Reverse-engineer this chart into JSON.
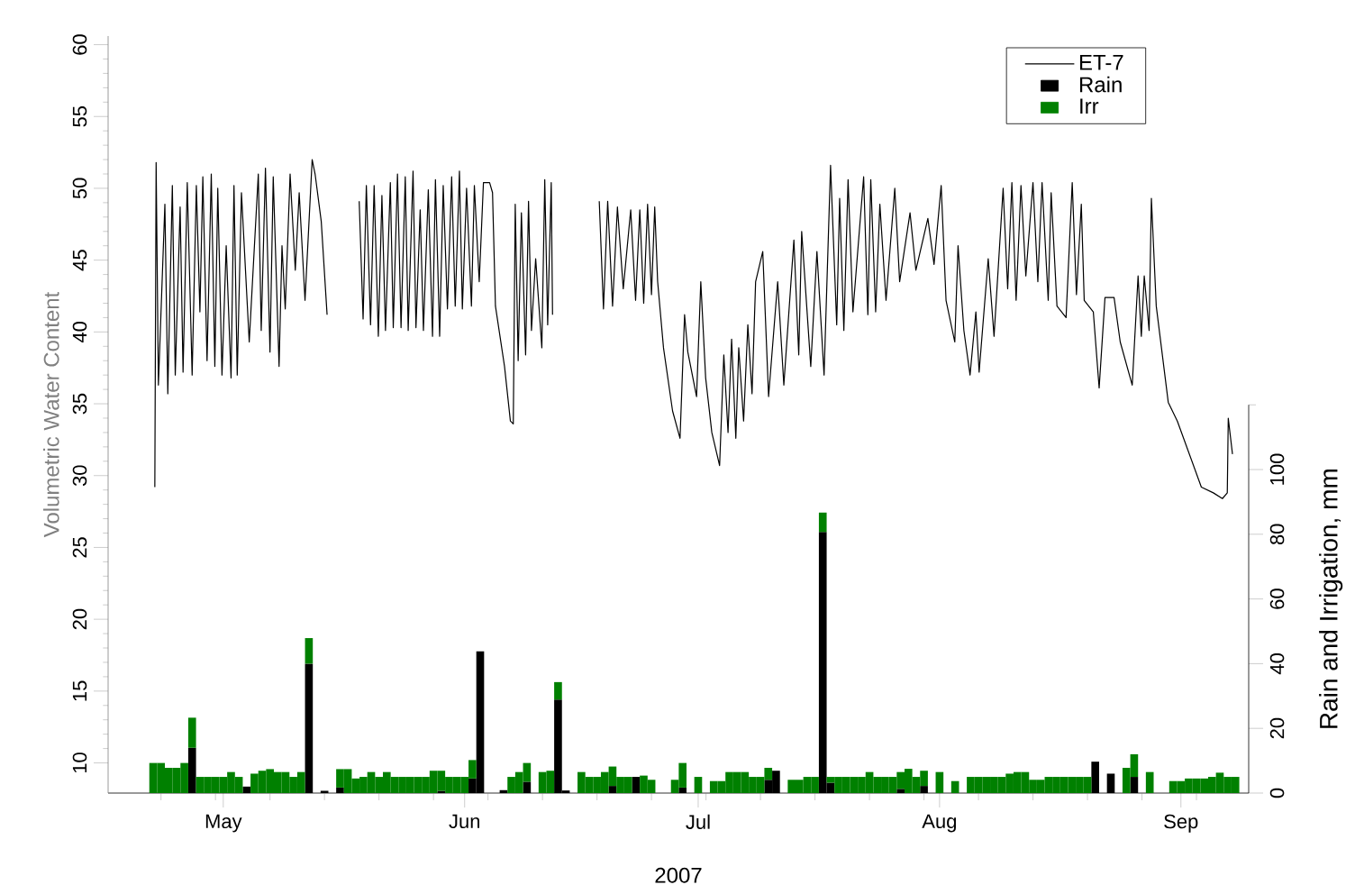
{
  "chart_data": {
    "type": "bar",
    "stacked": true,
    "xlabel": "2007",
    "ylabel": "Volumetric Water Content",
    "y2label": "Rain and Irrigation, mm",
    "legend": "top right",
    "xlim": [
      "2007-04-16T05:00",
      "2007-09-09T17:00"
    ],
    "xticks": [
      {
        "value": "2007-04-23",
        "label": null
      },
      {
        "value": "2007-04-30",
        "label": null
      },
      {
        "value": "2007-05-01",
        "label": "May"
      },
      {
        "value": "2007-05-07",
        "label": null
      },
      {
        "value": "2007-05-14",
        "label": null
      },
      {
        "value": "2007-05-21",
        "label": null
      },
      {
        "value": "2007-05-28",
        "label": null
      },
      {
        "value": "2007-06-01",
        "label": "Jun"
      },
      {
        "value": "2007-06-04",
        "label": null
      },
      {
        "value": "2007-06-11",
        "label": null
      },
      {
        "value": "2007-06-18",
        "label": null
      },
      {
        "value": "2007-06-25",
        "label": null
      },
      {
        "value": "2007-07-01",
        "label": "Jul"
      },
      {
        "value": "2007-07-02",
        "label": null
      },
      {
        "value": "2007-07-09",
        "label": null
      },
      {
        "value": "2007-07-16",
        "label": null
      },
      {
        "value": "2007-07-23",
        "label": null
      },
      {
        "value": "2007-07-30",
        "label": null
      },
      {
        "value": "2007-08-01",
        "label": "Aug"
      },
      {
        "value": "2007-08-06",
        "label": null
      },
      {
        "value": "2007-08-13",
        "label": null
      },
      {
        "value": "2007-08-20",
        "label": null
      },
      {
        "value": "2007-08-27",
        "label": null
      },
      {
        "value": "2007-09-01",
        "label": "Sep"
      },
      {
        "value": "2007-09-03",
        "label": null
      }
    ],
    "ylim": [
      7.9,
      60.6
    ],
    "yticks": [
      10,
      15,
      20,
      25,
      30,
      35,
      40,
      45,
      50,
      55,
      60
    ],
    "y2lim": [
      0,
      234
    ],
    "y2ticks": [
      0,
      20,
      40,
      60,
      80,
      100,
      {
        "value": 120,
        "label": null
      }
    ],
    "x": [
      "2007-04-22",
      "2007-04-23",
      "2007-04-24",
      "2007-04-25",
      "2007-04-26",
      "2007-04-27",
      "2007-04-28",
      "2007-04-29",
      "2007-04-30",
      "2007-05-01",
      "2007-05-02",
      "2007-05-03",
      "2007-05-04",
      "2007-05-05",
      "2007-05-06",
      "2007-05-07",
      "2007-05-08",
      "2007-05-09",
      "2007-05-10",
      "2007-05-11",
      "2007-05-12",
      "2007-05-13",
      "2007-05-14",
      "2007-05-15",
      "2007-05-16",
      "2007-05-17",
      "2007-05-18",
      "2007-05-19",
      "2007-05-20",
      "2007-05-21",
      "2007-05-22",
      "2007-05-23",
      "2007-05-24",
      "2007-05-25",
      "2007-05-26",
      "2007-05-27",
      "2007-05-28",
      "2007-05-29",
      "2007-05-30",
      "2007-05-31",
      "2007-06-01",
      "2007-06-02",
      "2007-06-03",
      "2007-06-04",
      "2007-06-05",
      "2007-06-06",
      "2007-06-07",
      "2007-06-08",
      "2007-06-09",
      "2007-06-10",
      "2007-06-11",
      "2007-06-12",
      "2007-06-13",
      "2007-06-14",
      "2007-06-15",
      "2007-06-16",
      "2007-06-17",
      "2007-06-18",
      "2007-06-19",
      "2007-06-20",
      "2007-06-21",
      "2007-06-22",
      "2007-06-23",
      "2007-06-24",
      "2007-06-25",
      "2007-06-26",
      "2007-06-27",
      "2007-06-28",
      "2007-06-29",
      "2007-06-30",
      "2007-07-01",
      "2007-07-02",
      "2007-07-03",
      "2007-07-04",
      "2007-07-05",
      "2007-07-06",
      "2007-07-07",
      "2007-07-08",
      "2007-07-09",
      "2007-07-10",
      "2007-07-11",
      "2007-07-12",
      "2007-07-13",
      "2007-07-14",
      "2007-07-15",
      "2007-07-16",
      "2007-07-17",
      "2007-07-18",
      "2007-07-19",
      "2007-07-20",
      "2007-07-21",
      "2007-07-22",
      "2007-07-23",
      "2007-07-24",
      "2007-07-25",
      "2007-07-26",
      "2007-07-27",
      "2007-07-28",
      "2007-07-29",
      "2007-07-30",
      "2007-07-31",
      "2007-08-01",
      "2007-08-02",
      "2007-08-03",
      "2007-08-04",
      "2007-08-05",
      "2007-08-06",
      "2007-08-07",
      "2007-08-08",
      "2007-08-09",
      "2007-08-10",
      "2007-08-11",
      "2007-08-12",
      "2007-08-13",
      "2007-08-14",
      "2007-08-15",
      "2007-08-16",
      "2007-08-17",
      "2007-08-18",
      "2007-08-19",
      "2007-08-20",
      "2007-08-21",
      "2007-08-22",
      "2007-08-23",
      "2007-08-24",
      "2007-08-25",
      "2007-08-26",
      "2007-08-27",
      "2007-08-28",
      "2007-08-29",
      "2007-08-30",
      "2007-08-31",
      "2007-09-01",
      "2007-09-02",
      "2007-09-03",
      "2007-09-04",
      "2007-09-05",
      "2007-09-06",
      "2007-09-07",
      "2007-09-08"
    ],
    "series": [
      {
        "name": "ET-7",
        "type": "line",
        "axis": "y",
        "color": "#000000",
        "x": [
          "2007-04-22T05:00",
          "2007-04-22T09:00",
          "2007-04-22T16:00",
          "2007-04-23T12:00",
          "2007-04-23T21:00",
          "2007-04-24T11:00",
          "2007-04-24T20:00",
          "2007-04-25T11:00",
          "2007-04-25T20:00",
          "2007-04-26T09:00",
          "2007-04-27T00:00",
          "2007-04-27T13:00",
          "2007-04-28T00:00",
          "2007-04-28T09:00",
          "2007-04-28T22:00",
          "2007-04-29T11:00",
          "2007-04-29T22:00",
          "2007-04-30T07:00",
          "2007-04-30T20:00",
          "2007-05-01T09:00",
          "2007-05-02T00:00",
          "2007-05-02T09:00",
          "2007-05-02T19:00",
          "2007-05-03T08:00",
          "2007-05-04T08:00",
          "2007-05-05T12:00",
          "2007-05-05T21:00",
          "2007-05-06T10:00",
          "2007-05-07T00:00",
          "2007-05-07T10:00",
          "2007-05-08T04:00",
          "2007-05-08T13:00",
          "2007-05-08T23:00",
          "2007-05-09T14:00",
          "2007-05-10T06:00",
          "2007-05-10T18:00",
          "2007-05-11T12:00",
          "2007-05-12T10:00",
          "2007-05-12T19:00",
          "2007-05-13T14:00",
          "2007-05-14T08:00",
          "2007-05-16T00:00",
          "2007-05-18T11:00",
          "2007-05-18T23:00",
          "2007-05-19T09:00",
          "2007-05-19T22:00",
          "2007-05-20T09:00",
          "2007-05-20T22:00",
          "2007-05-21T09:00",
          "2007-05-21T20:00",
          "2007-05-22T11:00",
          "2007-05-22T20:00",
          "2007-05-23T09:00",
          "2007-05-23T20:00",
          "2007-05-24T09:00",
          "2007-05-24T18:00",
          "2007-05-25T09:00",
          "2007-05-25T18:00",
          "2007-05-26T07:00",
          "2007-05-26T17:00",
          "2007-05-27T08:00",
          "2007-05-27T21:00",
          "2007-05-28T06:00",
          "2007-05-28T19:00",
          "2007-05-29T06:00",
          "2007-05-29T19:00",
          "2007-05-30T08:00",
          "2007-05-30T19:00",
          "2007-05-31T08:00",
          "2007-05-31T17:00",
          "2007-06-01T06:00",
          "2007-06-01T21:00",
          "2007-06-02T06:00",
          "2007-06-02T21:00",
          "2007-06-03T10:00",
          "2007-06-04T05:00",
          "2007-06-04T14:00",
          "2007-06-04T23:00",
          "2007-06-06T03:00",
          "2007-06-06T21:00",
          "2007-06-07T06:00",
          "2007-06-07T12:00",
          "2007-06-07T21:00",
          "2007-06-08T07:00",
          "2007-06-08T20:00",
          "2007-06-09T05:00",
          "2007-06-09T14:00",
          "2007-06-10T03:00",
          "2007-06-10T22:00",
          "2007-06-11T07:00",
          "2007-06-11T16:00",
          "2007-06-12T03:00",
          "2007-06-12T07:00",
          "2007-06-15T00:00",
          "2007-06-18T07:00",
          "2007-06-18T20:00",
          "2007-06-19T09:00",
          "2007-06-20T00:00",
          "2007-06-20T15:00",
          "2007-06-21T09:00",
          "2007-06-22T08:00",
          "2007-06-22T23:00",
          "2007-06-23T12:00",
          "2007-06-24T00:00",
          "2007-06-24T12:00",
          "2007-06-25T00:00",
          "2007-06-25T10:00",
          "2007-06-25T19:00",
          "2007-06-26T13:00",
          "2007-06-27T17:00",
          "2007-06-28T16:00",
          "2007-06-29T06:00",
          "2007-06-29T16:00",
          "2007-06-30T19:00",
          "2007-07-01T08:00",
          "2007-07-01T23:00",
          "2007-07-02T18:00",
          "2007-07-03T18:00",
          "2007-07-04T07:00",
          "2007-07-04T20:00",
          "2007-07-05T07:00",
          "2007-07-05T20:00",
          "2007-07-06T05:00",
          "2007-07-06T20:00",
          "2007-07-07T09:00",
          "2007-07-07T22:00",
          "2007-07-08T09:00",
          "2007-07-09T07:00",
          "2007-07-10T01:00",
          "2007-07-11T05:00",
          "2007-07-12T00:00",
          "2007-07-13T07:00",
          "2007-07-13T22:00",
          "2007-07-14T07:00",
          "2007-07-15T11:00",
          "2007-07-16T06:00",
          "2007-07-17T04:00",
          "2007-07-18T00:00",
          "2007-07-18T19:00",
          "2007-07-19T04:00",
          "2007-07-19T17:00",
          "2007-07-20T06:00",
          "2007-07-20T21:00",
          "2007-07-22T06:00",
          "2007-07-22T19:00",
          "2007-07-23T04:00",
          "2007-07-23T19:00",
          "2007-07-24T08:00",
          "2007-07-25T03:00",
          "2007-07-26T06:00",
          "2007-07-26T21:00",
          "2007-07-28T05:00",
          "2007-07-28T23:00",
          "2007-07-30T12:00",
          "2007-07-31T07:00",
          "2007-08-01T05:00",
          "2007-08-01T20:00",
          "2007-08-02T23:00",
          "2007-08-03T09:00",
          "2007-08-04T03:00",
          "2007-08-04T22:00",
          "2007-08-05T16:00",
          "2007-08-06T02:00",
          "2007-08-07T06:00",
          "2007-08-08T00:00",
          "2007-08-09T04:00",
          "2007-08-09T18:00",
          "2007-08-10T07:00",
          "2007-08-10T20:00",
          "2007-08-11T11:00",
          "2007-08-12T02:00",
          "2007-08-13T00:00",
          "2007-08-13T15:00",
          "2007-08-14T04:00",
          "2007-08-14T23:00",
          "2007-08-15T08:00",
          "2007-08-16T02:00",
          "2007-08-17T06:00",
          "2007-08-18T01:00",
          "2007-08-18T14:00",
          "2007-08-19T05:00",
          "2007-08-19T14:00",
          "2007-08-20T18:00",
          "2007-08-21T12:00",
          "2007-08-22T06:00",
          "2007-08-23T10:00",
          "2007-08-24T05:00",
          "2007-08-25T18:00",
          "2007-08-26T12:00",
          "2007-08-26T22:00",
          "2007-08-27T07:00",
          "2007-08-27T22:00",
          "2007-08-28T05:00",
          "2007-08-28T20:00",
          "2007-08-30T09:00",
          "2007-08-31T13:00",
          "2007-09-02T02:00",
          "2007-09-03T15:00",
          "2007-09-05T04:00",
          "2007-09-06T08:00",
          "2007-09-06T23:00",
          "2007-09-07T02:00",
          "2007-09-07T15:00"
        ],
        "values": [
          29.2,
          51.8,
          36.3,
          48.9,
          35.7,
          50.2,
          37.0,
          48.7,
          37.2,
          50.4,
          37.0,
          50.2,
          41.4,
          50.8,
          38.0,
          51.0,
          37.6,
          50.0,
          37.0,
          46.0,
          36.8,
          50.2,
          37.0,
          49.7,
          39.3,
          51.0,
          40.1,
          51.4,
          38.6,
          50.8,
          37.6,
          46.0,
          41.6,
          51.0,
          44.3,
          49.7,
          42.2,
          52.0,
          51.0,
          47.7,
          41.2,
          null,
          49.1,
          40.9,
          50.2,
          40.5,
          50.2,
          39.7,
          49.5,
          40.1,
          50.4,
          40.3,
          51.0,
          40.3,
          50.8,
          40.1,
          51.2,
          40.3,
          48.5,
          40.1,
          49.9,
          39.7,
          50.6,
          39.7,
          50.2,
          41.6,
          50.8,
          41.8,
          51.2,
          41.6,
          50.0,
          41.8,
          50.2,
          43.5,
          50.4,
          50.4,
          49.7,
          41.8,
          37.6,
          33.8,
          33.6,
          48.9,
          38.0,
          48.3,
          38.4,
          49.1,
          40.1,
          45.1,
          38.9,
          50.6,
          40.5,
          50.4,
          41.2,
          null,
          49.1,
          41.6,
          49.1,
          41.8,
          48.7,
          43.0,
          48.5,
          42.2,
          48.5,
          42.0,
          48.9,
          42.6,
          48.7,
          43.5,
          38.9,
          34.5,
          32.6,
          41.2,
          38.6,
          35.5,
          43.5,
          36.8,
          33.0,
          30.7,
          38.4,
          33.0,
          39.5,
          32.6,
          38.9,
          33.8,
          40.5,
          35.7,
          43.5,
          45.6,
          35.5,
          43.5,
          36.3,
          46.4,
          38.4,
          47.0,
          37.6,
          45.6,
          37.0,
          51.6,
          40.5,
          49.3,
          40.1,
          50.6,
          41.4,
          50.8,
          41.2,
          50.6,
          41.4,
          48.9,
          42.2,
          50.0,
          43.5,
          48.3,
          44.3,
          47.9,
          44.7,
          50.2,
          42.2,
          39.3,
          46.0,
          40.1,
          37.0,
          41.4,
          37.2,
          45.1,
          39.7,
          50.0,
          43.0,
          50.4,
          42.2,
          50.2,
          43.9,
          50.4,
          43.5,
          50.4,
          42.2,
          49.7,
          41.8,
          41.0,
          50.4,
          42.6,
          48.9,
          42.2,
          41.4,
          36.1,
          42.4,
          42.4,
          39.3,
          36.3,
          43.9,
          39.7,
          43.9,
          40.1,
          49.3,
          41.8,
          35.1,
          33.8,
          31.5,
          29.2,
          28.8,
          28.4,
          28.8,
          34.0,
          31.5
        ]
      },
      {
        "name": "Rain",
        "axis": "y2",
        "color": "#000000",
        "values": [
          null,
          null,
          null,
          null,
          null,
          14.0,
          null,
          null,
          null,
          null,
          null,
          null,
          2.0,
          null,
          null,
          null,
          null,
          null,
          null,
          null,
          40.0,
          null,
          0.7,
          null,
          1.7,
          null,
          null,
          null,
          null,
          null,
          null,
          null,
          null,
          null,
          null,
          null,
          null,
          0.7,
          null,
          null,
          null,
          4.5,
          43.8,
          null,
          null,
          0.9,
          null,
          null,
          3.5,
          null,
          null,
          null,
          28.9,
          0.8,
          null,
          null,
          null,
          null,
          null,
          2.2,
          null,
          null,
          5.0,
          null,
          null,
          null,
          null,
          null,
          1.7,
          null,
          null,
          null,
          null,
          null,
          null,
          null,
          null,
          null,
          null,
          4.1,
          6.9,
          null,
          null,
          null,
          null,
          null,
          80.7,
          3.2,
          null,
          null,
          null,
          null,
          null,
          null,
          null,
          null,
          1.3,
          null,
          null,
          2.2,
          null,
          null,
          null,
          null,
          null,
          null,
          null,
          null,
          null,
          null,
          null,
          null,
          null,
          null,
          null,
          null,
          null,
          null,
          null,
          null,
          null,
          9.7,
          null,
          6.0,
          null,
          null,
          5.0,
          null,
          null,
          null,
          null,
          null,
          null,
          null,
          null,
          null,
          null,
          null,
          null,
          null
        ]
      },
      {
        "name": "Irr",
        "axis": "y2",
        "color": "#008000",
        "values": [
          9.3,
          9.3,
          7.8,
          7.8,
          9.3,
          9.3,
          5.0,
          5.0,
          5.0,
          5.0,
          6.5,
          5.0,
          null,
          6.0,
          6.9,
          7.4,
          6.5,
          6.5,
          5.0,
          6.5,
          7.9,
          null,
          null,
          null,
          5.7,
          7.4,
          4.5,
          5.0,
          6.5,
          5.0,
          6.5,
          5.0,
          5.0,
          5.0,
          5.0,
          5.0,
          6.9,
          6.2,
          5.0,
          5.0,
          5.0,
          5.7,
          null,
          null,
          null,
          null,
          5.0,
          6.5,
          5.8,
          null,
          6.5,
          6.9,
          5.4,
          null,
          null,
          6.5,
          5.0,
          5.0,
          6.5,
          6.0,
          5.0,
          5.0,
          null,
          5.4,
          4.1,
          null,
          null,
          4.1,
          7.6,
          null,
          5.0,
          null,
          3.7,
          3.7,
          6.5,
          6.5,
          6.5,
          5.0,
          5.0,
          3.7,
          null,
          null,
          4.1,
          4.1,
          5.0,
          5.0,
          6.0,
          1.8,
          5.0,
          5.0,
          5.0,
          5.0,
          6.5,
          5.0,
          5.0,
          5.0,
          5.2,
          7.5,
          5.0,
          4.7,
          null,
          6.5,
          null,
          3.7,
          null,
          5.0,
          5.0,
          5.0,
          5.0,
          5.0,
          6.0,
          6.5,
          6.5,
          4.1,
          4.1,
          5.0,
          5.0,
          5.0,
          5.0,
          5.0,
          5.0,
          null,
          null,
          null,
          null,
          7.8,
          7.0,
          null,
          6.5,
          null,
          null,
          3.7,
          3.7,
          4.5,
          4.5,
          4.5,
          5.0,
          6.3,
          5.0,
          5.0
        ]
      }
    ]
  }
}
